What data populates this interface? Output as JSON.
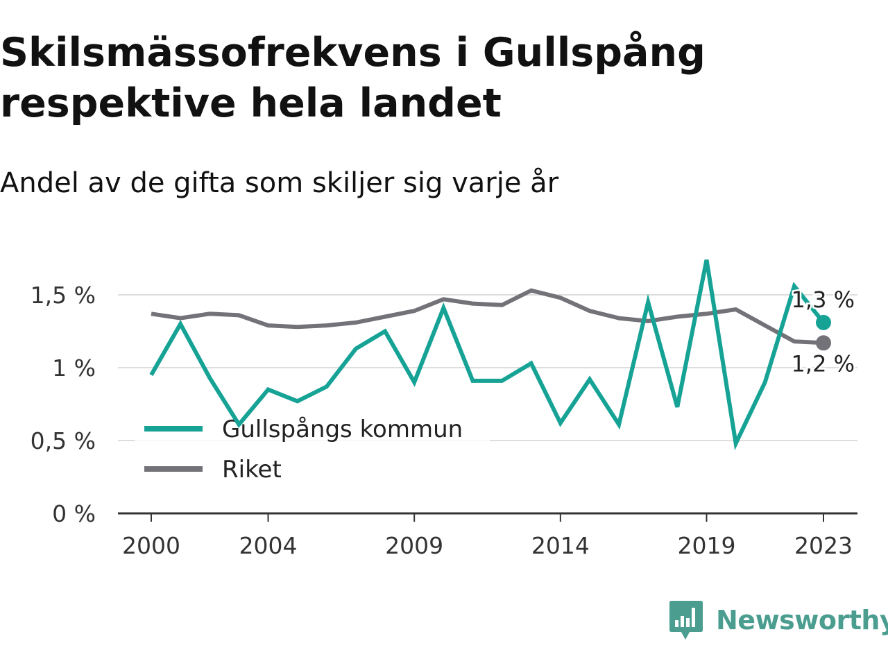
{
  "header": {
    "title": "Skilsmässofrekvens i Gullspång respektive hela landet",
    "subtitle": "Andel av de gifta som skiljer sig varje år"
  },
  "colors": {
    "gullspang": "#16a396",
    "riket": "#737278",
    "grid": "#dddddd",
    "axis": "#333333",
    "brand": "#4a9d8f"
  },
  "chart_data": {
    "type": "line",
    "x": [
      2000,
      2001,
      2002,
      2003,
      2004,
      2005,
      2006,
      2007,
      2008,
      2009,
      2010,
      2011,
      2012,
      2013,
      2014,
      2015,
      2016,
      2017,
      2018,
      2019,
      2020,
      2021,
      2022,
      2023
    ],
    "xticks": [
      2000,
      2004,
      2009,
      2014,
      2019,
      2023
    ],
    "xtick_labels": [
      "2000",
      "2004",
      "2009",
      "2014",
      "2019",
      "2023"
    ],
    "ylim": [
      0,
      1.85
    ],
    "yticks": [
      0,
      0.5,
      1,
      1.5
    ],
    "ytick_labels": [
      "0 %",
      "0,5 %",
      "1 %",
      "1,5 %"
    ],
    "grid": true,
    "legend_position": "bottom-left",
    "series": [
      {
        "name": "Gullspångs kommun",
        "color": "#16a396",
        "values": [
          0.95,
          1.3,
          0.93,
          0.61,
          0.85,
          0.77,
          0.87,
          1.13,
          1.25,
          0.9,
          1.41,
          0.91,
          0.91,
          1.03,
          0.62,
          0.92,
          0.61,
          1.45,
          0.73,
          1.74,
          0.48,
          0.9,
          1.56,
          1.31
        ],
        "end_label": "1,3 %"
      },
      {
        "name": "Riket",
        "color": "#737278",
        "values": [
          1.37,
          1.34,
          1.37,
          1.36,
          1.29,
          1.28,
          1.29,
          1.31,
          1.35,
          1.39,
          1.47,
          1.44,
          1.43,
          1.53,
          1.48,
          1.39,
          1.34,
          1.32,
          1.35,
          1.37,
          1.4,
          1.29,
          1.18,
          1.17
        ],
        "end_label": "1,2 %"
      }
    ]
  },
  "footer": {
    "brand_name": "Newsworthy",
    "logo_icon": "bar-chart-speech-bubble-icon"
  }
}
